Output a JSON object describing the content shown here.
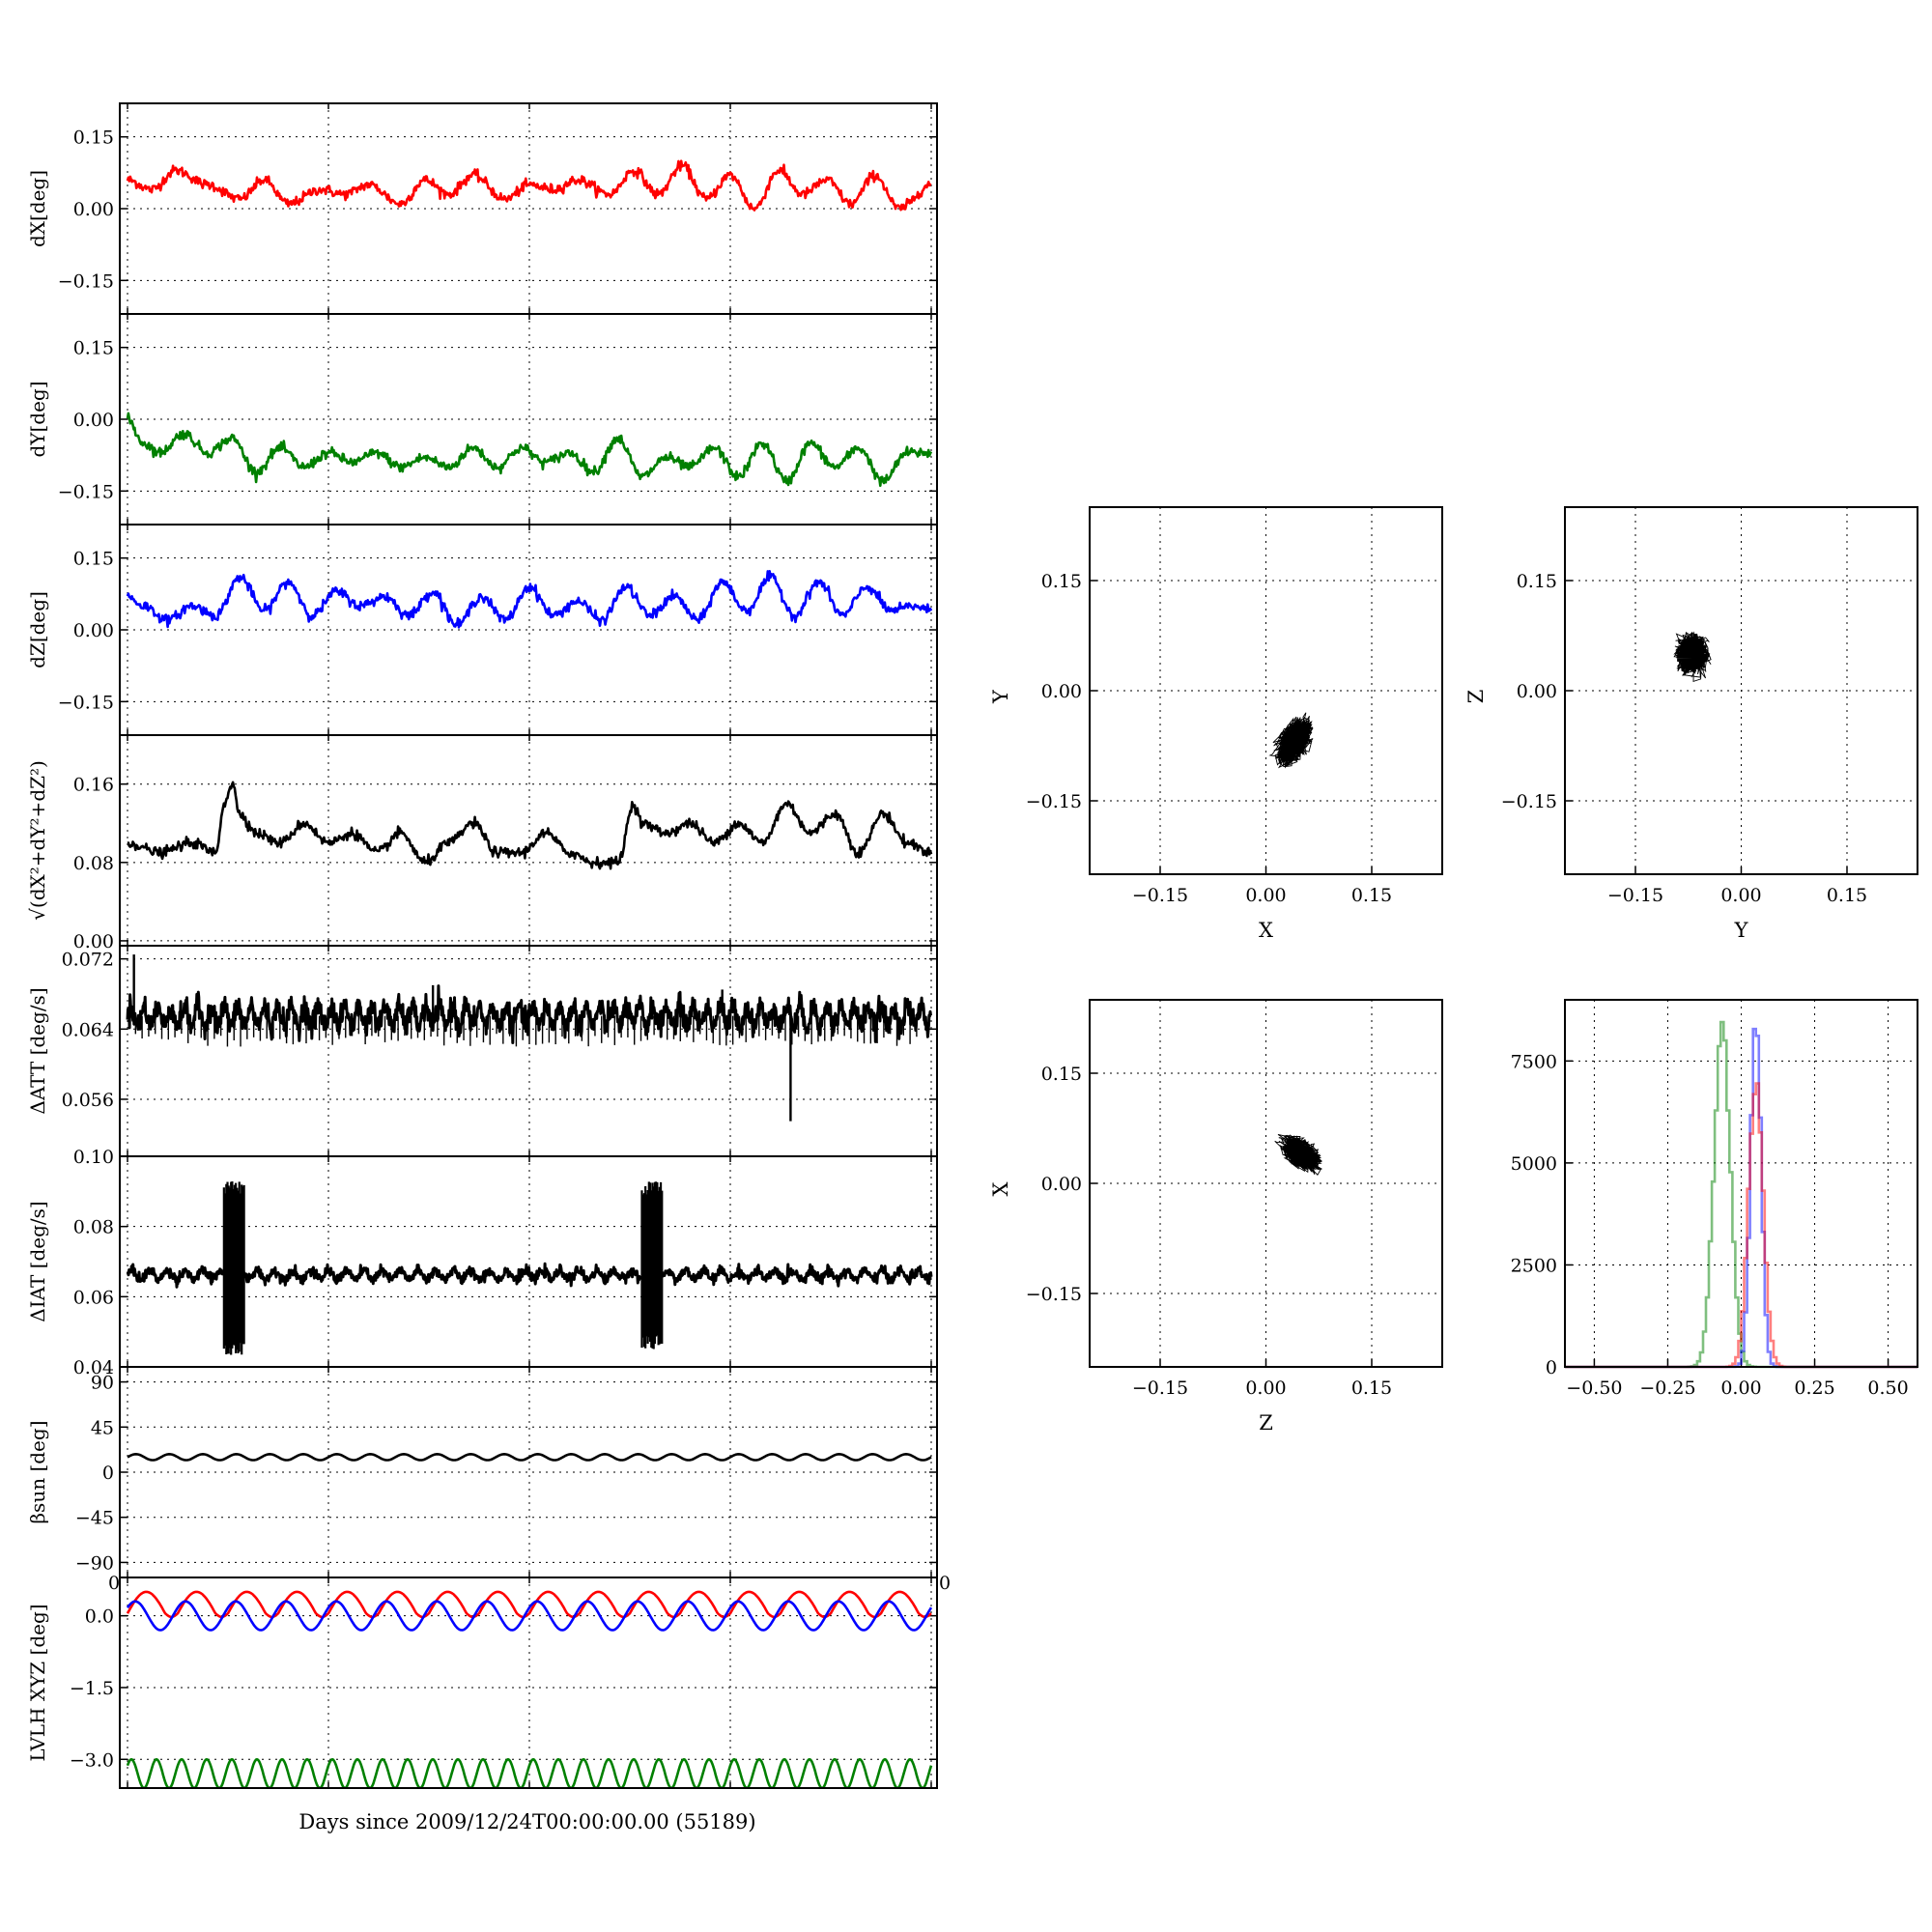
{
  "figure": {
    "xlabel": "Days since 2009/12/24T00:00:00.00 (55189)"
  },
  "chart_data": [
    {
      "type": "line",
      "id": "dx",
      "ylabel": "dX[deg]",
      "ylim": [
        -0.22,
        0.22
      ],
      "yticks": [
        0.15,
        0.0,
        -0.15
      ],
      "yticklabels": [
        "0.15",
        "0.00",
        "−0.15"
      ],
      "xlim": [
        0,
        100
      ],
      "grid": true,
      "color": "#ff0000",
      "series": [
        {
          "x": [
            0,
            3,
            6,
            10,
            14,
            17,
            20,
            24,
            27,
            30,
            34,
            37,
            40,
            43,
            47,
            50,
            53,
            56,
            60,
            63,
            66,
            69,
            72,
            75,
            78,
            81,
            84,
            87,
            90,
            93,
            96,
            100
          ],
          "values": [
            0.06,
            0.04,
            0.08,
            0.05,
            0.02,
            0.06,
            0.01,
            0.04,
            0.03,
            0.05,
            0.01,
            0.06,
            0.03,
            0.07,
            0.02,
            0.05,
            0.04,
            0.06,
            0.03,
            0.08,
            0.03,
            0.09,
            0.02,
            0.07,
            0.0,
            0.08,
            0.03,
            0.06,
            0.01,
            0.07,
            0.0,
            0.05
          ]
        }
      ]
    },
    {
      "type": "line",
      "id": "dy",
      "ylabel": "dY[deg]",
      "ylim": [
        -0.22,
        0.22
      ],
      "yticks": [
        0.15,
        0.0,
        -0.15
      ],
      "yticklabels": [
        "0.15",
        "0.00",
        "−0.15"
      ],
      "xlim": [
        0,
        100
      ],
      "grid": true,
      "color": "#008000",
      "series": [
        {
          "x": [
            0,
            2,
            4,
            7,
            10,
            13,
            16,
            19,
            22,
            25,
            28,
            31,
            34,
            37,
            40,
            43,
            46,
            49,
            52,
            55,
            58,
            61,
            64,
            67,
            70,
            73,
            76,
            79,
            82,
            85,
            88,
            91,
            94,
            97,
            100
          ],
          "values": [
            0.0,
            -0.05,
            -0.07,
            -0.03,
            -0.07,
            -0.04,
            -0.11,
            -0.06,
            -0.1,
            -0.07,
            -0.09,
            -0.07,
            -0.1,
            -0.08,
            -0.1,
            -0.06,
            -0.1,
            -0.06,
            -0.09,
            -0.07,
            -0.11,
            -0.04,
            -0.12,
            -0.08,
            -0.1,
            -0.06,
            -0.12,
            -0.05,
            -0.13,
            -0.05,
            -0.1,
            -0.06,
            -0.13,
            -0.07,
            -0.07
          ]
        }
      ]
    },
    {
      "type": "line",
      "id": "dz",
      "ylabel": "dZ[deg]",
      "ylim": [
        -0.22,
        0.22
      ],
      "yticks": [
        0.15,
        0.0,
        -0.15
      ],
      "yticklabels": [
        "0.15",
        "0.00",
        "−0.15"
      ],
      "xlim": [
        0,
        100
      ],
      "grid": true,
      "color": "#0000ff",
      "series": [
        {
          "x": [
            0,
            2,
            5,
            8,
            11,
            14,
            17,
            20,
            23,
            26,
            29,
            32,
            35,
            38,
            41,
            44,
            47,
            50,
            53,
            56,
            59,
            62,
            65,
            68,
            71,
            74,
            77,
            80,
            83,
            86,
            89,
            92,
            95,
            98,
            100
          ],
          "values": [
            0.07,
            0.05,
            0.02,
            0.05,
            0.03,
            0.11,
            0.04,
            0.1,
            0.03,
            0.08,
            0.05,
            0.07,
            0.03,
            0.08,
            0.01,
            0.07,
            0.02,
            0.09,
            0.03,
            0.06,
            0.02,
            0.09,
            0.03,
            0.07,
            0.02,
            0.1,
            0.04,
            0.11,
            0.03,
            0.1,
            0.03,
            0.09,
            0.04,
            0.05,
            0.04
          ]
        }
      ]
    },
    {
      "type": "line",
      "id": "dmag",
      "ylabel": "√(dX²+dY²+dZ²)",
      "ylim": [
        -0.005,
        0.21
      ],
      "yticks": [
        0.16,
        0.08,
        0.0
      ],
      "yticklabels": [
        "0.16",
        "0.08",
        "0.00"
      ],
      "xlim": [
        0,
        100
      ],
      "grid": true,
      "color": "#000000",
      "series": [
        {
          "x": [
            0,
            4,
            8,
            11,
            12,
            13,
            14,
            16,
            19,
            22,
            25,
            28,
            31,
            34,
            37,
            40,
            43,
            46,
            49,
            52,
            55,
            58,
            61,
            63,
            64,
            67,
            70,
            73,
            76,
            79,
            82,
            85,
            88,
            91,
            94,
            97,
            100
          ],
          "values": [
            0.1,
            0.09,
            0.1,
            0.09,
            0.14,
            0.16,
            0.13,
            0.11,
            0.1,
            0.12,
            0.1,
            0.11,
            0.09,
            0.11,
            0.08,
            0.1,
            0.12,
            0.09,
            0.09,
            0.11,
            0.09,
            0.08,
            0.08,
            0.14,
            0.12,
            0.11,
            0.12,
            0.1,
            0.12,
            0.1,
            0.14,
            0.11,
            0.13,
            0.09,
            0.13,
            0.1,
            0.09
          ]
        }
      ]
    },
    {
      "type": "line",
      "id": "datt",
      "ylabel": "ΔATT [deg/s]",
      "ylim": [
        0.0495,
        0.0735
      ],
      "yticks": [
        0.072,
        0.064,
        0.056
      ],
      "yticklabels": [
        "0.072",
        "0.064",
        "0.056"
      ],
      "xlim": [
        0,
        100
      ],
      "grid": true,
      "color": "#000000",
      "oscillation": {
        "base": 0.0655,
        "amplitude": 0.0011,
        "cycles": 60
      },
      "spikes": [
        {
          "x": 0.8,
          "y": 0.0725
        },
        {
          "x": 38,
          "y": 0.069
        },
        {
          "x": 74,
          "y": 0.0685
        },
        {
          "x": 82.5,
          "y": 0.0535
        }
      ]
    },
    {
      "type": "line",
      "id": "diat",
      "ylabel": "ΔIAT [deg/s]",
      "ylim": [
        0.04,
        0.1
      ],
      "yticks": [
        0.1,
        0.08,
        0.06,
        0.04
      ],
      "yticklabels": [
        "0.10",
        "0.08",
        "0.06",
        "0.04"
      ],
      "xlim": [
        0,
        100
      ],
      "grid": true,
      "color": "#000000",
      "oscillation": {
        "base": 0.0662,
        "amplitude": 0.0012,
        "cycles": 45
      },
      "bursts": [
        {
          "x0": 12,
          "x1": 14.5,
          "ymin": 0.043,
          "ymax": 0.093
        },
        {
          "x0": 64,
          "x1": 66.5,
          "ymin": 0.045,
          "ymax": 0.093
        }
      ]
    },
    {
      "type": "line",
      "id": "beta",
      "ylabel": "βsun [deg]",
      "ylim": [
        -105,
        105
      ],
      "yticks": [
        90,
        45,
        0,
        -45,
        -90
      ],
      "yticklabels": [
        "90",
        "45",
        "0",
        "−45",
        "−90"
      ],
      "xlim": [
        0,
        100
      ],
      "grid": true,
      "color": "#000000",
      "oscillation": {
        "base": 15,
        "amplitude": 3,
        "cycles": 24
      }
    },
    {
      "type": "line",
      "id": "lvlh",
      "ylabel": "LVLH XYZ [deg]",
      "ylim": [
        -3.6,
        0.8
      ],
      "yticks": [
        0.0,
        -1.5,
        -3.0
      ],
      "yticklabels": [
        "0.0",
        "−1.5",
        "−3.0"
      ],
      "xlim": [
        0,
        100
      ],
      "grid": true,
      "edge_labels": [
        "0",
        "0"
      ],
      "series": [
        {
          "color": "#ff0000",
          "shape": "sawtooth",
          "base": 0.05,
          "amplitude": 0.5,
          "cycles": 16
        },
        {
          "color": "#0000ff",
          "shape": "sine",
          "base": 0.0,
          "amplitude": 0.3,
          "cycles": 16
        },
        {
          "color": "#008000",
          "shape": "sine",
          "base": -3.3,
          "amplitude": 0.3,
          "cycles": 32
        }
      ]
    },
    {
      "type": "scatter",
      "id": "xy",
      "xlabel": "X",
      "ylabel": "Y",
      "xlim": [
        -0.25,
        0.25
      ],
      "ylim": [
        -0.25,
        0.25
      ],
      "grid": true,
      "ticks": [
        -0.15,
        0.0,
        0.15
      ],
      "ticklabels": [
        "−0.15",
        "0.00",
        "0.15"
      ],
      "cluster": {
        "cx": 0.04,
        "cy": -0.07,
        "sx": 0.02,
        "sy": 0.025,
        "rho": 0.5
      }
    },
    {
      "type": "scatter",
      "id": "yz",
      "xlabel": "Y",
      "ylabel": "Z",
      "xlim": [
        -0.25,
        0.25
      ],
      "ylim": [
        -0.25,
        0.25
      ],
      "grid": true,
      "ticks": [
        -0.15,
        0.0,
        0.15
      ],
      "ticklabels": [
        "−0.15",
        "0.00",
        "0.15"
      ],
      "cluster": {
        "cx": -0.07,
        "cy": 0.05,
        "sx": 0.018,
        "sy": 0.022,
        "rho": 0.0
      }
    },
    {
      "type": "scatter",
      "id": "zx",
      "xlabel": "Z",
      "ylabel": "X",
      "xlim": [
        -0.25,
        0.25
      ],
      "ylim": [
        -0.25,
        0.25
      ],
      "grid": true,
      "ticks": [
        -0.15,
        0.0,
        0.15
      ],
      "ticklabels": [
        "−0.15",
        "0.00",
        "0.15"
      ],
      "cluster": {
        "cx": 0.05,
        "cy": 0.04,
        "sx": 0.022,
        "sy": 0.018,
        "rho": -0.5
      }
    },
    {
      "type": "histogram",
      "id": "hist",
      "xlim": [
        -0.6,
        0.6
      ],
      "ylim": [
        0,
        9000
      ],
      "grid": true,
      "xticks": [
        -0.5,
        -0.25,
        0.0,
        0.25,
        0.5
      ],
      "xticklabels": [
        "−0.50",
        "−0.25",
        "0.00",
        "0.25",
        "0.50"
      ],
      "yticks": [
        0,
        2500,
        5000,
        7500
      ],
      "yticklabels": [
        "0",
        "2500",
        "5000",
        "7500"
      ],
      "series": [
        {
          "color": "#008000",
          "center": -0.07,
          "sigma": 0.028,
          "peak": 8600
        },
        {
          "color": "#0000ff",
          "center": 0.045,
          "sigma": 0.018,
          "peak": 8900
        },
        {
          "color": "#ff0000",
          "center": 0.045,
          "sigma": 0.025,
          "peak": 7300
        }
      ]
    }
  ]
}
